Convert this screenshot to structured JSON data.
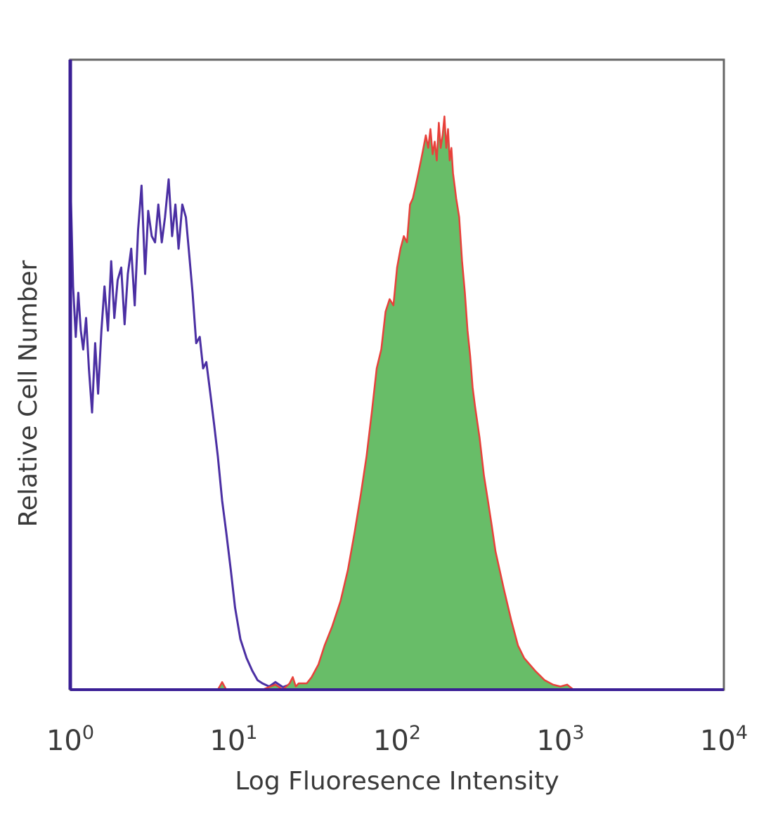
{
  "chart_data": {
    "type": "area",
    "title": "",
    "xlabel": "Log Fluoresence Intensity",
    "ylabel": "Relative Cell Number",
    "xscale": "log",
    "xlim": [
      1,
      10000
    ],
    "ylim": [
      0,
      1
    ],
    "y_ticks_shown": false,
    "grid": false,
    "legend": "none",
    "x_ticks": [
      {
        "base": "10",
        "exp": "0",
        "value": 1
      },
      {
        "base": "10",
        "exp": "1",
        "value": 10
      },
      {
        "base": "10",
        "exp": "2",
        "value": 100
      },
      {
        "base": "10",
        "exp": "3",
        "value": 1000
      },
      {
        "base": "10",
        "exp": "4",
        "value": 10000
      }
    ],
    "series": [
      {
        "style": "line",
        "color": "#4b2fa3",
        "x": [
          1.0,
          1.04,
          1.08,
          1.12,
          1.16,
          1.2,
          1.25,
          1.3,
          1.36,
          1.42,
          1.48,
          1.55,
          1.62,
          1.7,
          1.78,
          1.86,
          1.95,
          2.05,
          2.15,
          2.25,
          2.36,
          2.48,
          2.6,
          2.73,
          2.87,
          3.0,
          3.15,
          3.3,
          3.46,
          3.63,
          3.8,
          4.0,
          4.2,
          4.4,
          4.6,
          4.85,
          5.1,
          5.35,
          5.6,
          5.9,
          6.2,
          6.5,
          6.8,
          7.2,
          7.6,
          8.0,
          8.5,
          9.0,
          9.6,
          10.2,
          11.0,
          12.0,
          13.0,
          14.0,
          15.0,
          16.5,
          18.0,
          20.0,
          22.0,
          25.0,
          30.0,
          40.0,
          100.0,
          1000.0,
          10000.0
        ],
        "y": [
          0.82,
          0.64,
          0.56,
          0.63,
          0.57,
          0.54,
          0.59,
          0.51,
          0.44,
          0.55,
          0.47,
          0.57,
          0.64,
          0.57,
          0.68,
          0.59,
          0.65,
          0.67,
          0.58,
          0.66,
          0.7,
          0.61,
          0.73,
          0.8,
          0.66,
          0.76,
          0.72,
          0.71,
          0.77,
          0.71,
          0.75,
          0.81,
          0.72,
          0.77,
          0.7,
          0.77,
          0.75,
          0.69,
          0.63,
          0.55,
          0.56,
          0.51,
          0.52,
          0.47,
          0.42,
          0.37,
          0.3,
          0.25,
          0.19,
          0.13,
          0.08,
          0.05,
          0.03,
          0.015,
          0.01,
          0.005,
          0.012,
          0.004,
          0.008,
          0.003,
          0.0,
          0.0,
          0.0,
          0.0,
          0.0
        ]
      },
      {
        "style": "filled",
        "fill": "#68bd68",
        "stroke": "#e8403a",
        "x": [
          1.0,
          8.0,
          8.5,
          9.0,
          10.0,
          15.0,
          18.0,
          20.0,
          22.0,
          23.0,
          24.0,
          25.0,
          28.0,
          30.0,
          33.0,
          36.0,
          40.0,
          45.0,
          50.0,
          55.0,
          60.0,
          65.0,
          70.0,
          75.0,
          80.0,
          85.0,
          90.0,
          95.0,
          100.0,
          105.0,
          110.0,
          115.0,
          120.0,
          125.0,
          130.0,
          135.0,
          140.0,
          145.0,
          150.0,
          155.0,
          160.0,
          165.0,
          170.0,
          175.0,
          180.0,
          185.0,
          190.0,
          195.0,
          200.0,
          205.0,
          210.0,
          215.0,
          220.0,
          225.0,
          230.0,
          240.0,
          250.0,
          260.0,
          270.0,
          280.0,
          290.0,
          300.0,
          320.0,
          340.0,
          360.0,
          380.0,
          400.0,
          450.0,
          500.0,
          550.0,
          600.0,
          700.0,
          800.0,
          900.0,
          1000.0,
          1100.0,
          1200.0,
          10000.0
        ],
        "y": [
          0.0,
          0.0,
          0.012,
          0.0,
          0.0,
          0.0,
          0.008,
          0.0,
          0.01,
          0.02,
          0.005,
          0.01,
          0.01,
          0.02,
          0.04,
          0.07,
          0.1,
          0.14,
          0.19,
          0.25,
          0.31,
          0.37,
          0.44,
          0.51,
          0.54,
          0.6,
          0.62,
          0.61,
          0.67,
          0.7,
          0.72,
          0.71,
          0.77,
          0.78,
          0.8,
          0.82,
          0.84,
          0.86,
          0.88,
          0.86,
          0.89,
          0.85,
          0.87,
          0.84,
          0.9,
          0.86,
          0.88,
          0.91,
          0.86,
          0.89,
          0.84,
          0.86,
          0.82,
          0.8,
          0.78,
          0.75,
          0.68,
          0.63,
          0.57,
          0.53,
          0.48,
          0.45,
          0.4,
          0.34,
          0.3,
          0.26,
          0.22,
          0.16,
          0.11,
          0.07,
          0.05,
          0.03,
          0.015,
          0.008,
          0.005,
          0.008,
          0.0,
          0.0
        ]
      }
    ]
  }
}
